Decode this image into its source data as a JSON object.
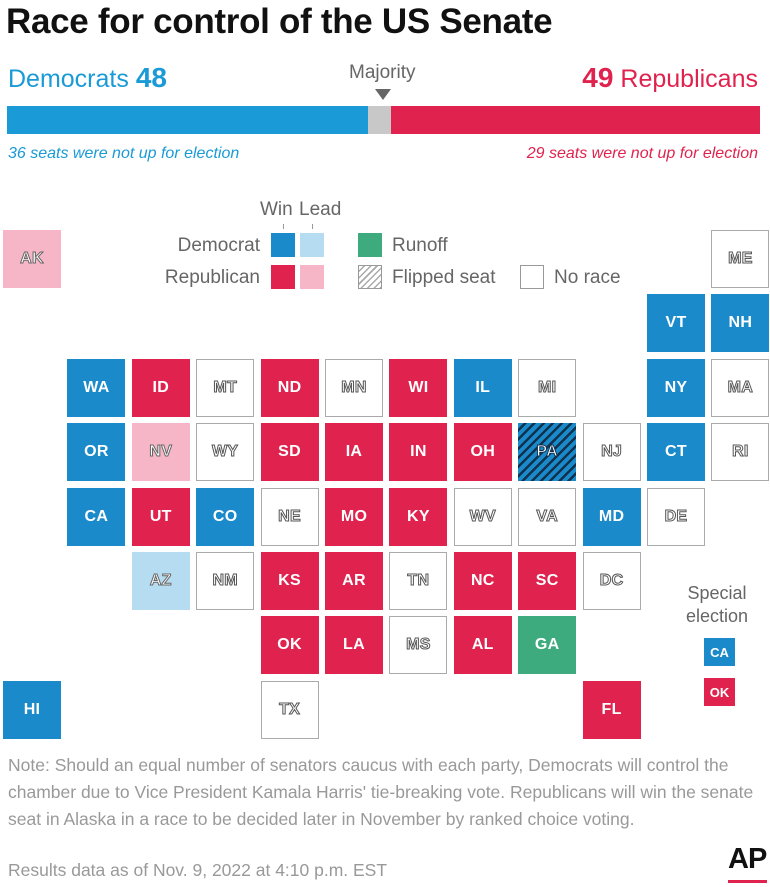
{
  "chart_data": {
    "type": "tile-map",
    "title": "Race for control of the US Senate",
    "totals": {
      "democrats": {
        "label": "Democrats",
        "seats": 48,
        "not_up": "36 seats were not up for election",
        "color": "#1a9ad6"
      },
      "republicans": {
        "label": "Republicans",
        "seats": 49,
        "not_up": "29 seats were not up for election",
        "color": "#e0234e"
      },
      "total_seats": 100,
      "majority_label": "Majority"
    },
    "legend": {
      "win": "Win",
      "lead": "Lead",
      "democrat": "Democrat",
      "republican": "Republican",
      "runoff": "Runoff",
      "flipped": "Flipped seat",
      "no_race": "No race"
    },
    "status_key": {
      "D": "Democrat win",
      "DL": "Democrat lead",
      "R": "Republican win",
      "RL": "Republican lead",
      "G": "Runoff",
      "N": "No race",
      "F": "Flipped seat (Democrat)"
    },
    "states": [
      {
        "abbr": "AK",
        "status": "RL",
        "col": 0,
        "row": 0
      },
      {
        "abbr": "ME",
        "status": "N",
        "col": 11,
        "row": 0
      },
      {
        "abbr": "VT",
        "status": "D",
        "col": 10,
        "row": 1
      },
      {
        "abbr": "NH",
        "status": "D",
        "col": 11,
        "row": 1
      },
      {
        "abbr": "WA",
        "status": "D",
        "col": 1,
        "row": 2
      },
      {
        "abbr": "ID",
        "status": "R",
        "col": 2,
        "row": 2
      },
      {
        "abbr": "MT",
        "status": "N",
        "col": 3,
        "row": 2
      },
      {
        "abbr": "ND",
        "status": "R",
        "col": 4,
        "row": 2
      },
      {
        "abbr": "MN",
        "status": "N",
        "col": 5,
        "row": 2
      },
      {
        "abbr": "WI",
        "status": "R",
        "col": 6,
        "row": 2
      },
      {
        "abbr": "IL",
        "status": "D",
        "col": 7,
        "row": 2
      },
      {
        "abbr": "MI",
        "status": "N",
        "col": 8,
        "row": 2
      },
      {
        "abbr": "NY",
        "status": "D",
        "col": 10,
        "row": 2
      },
      {
        "abbr": "MA",
        "status": "N",
        "col": 11,
        "row": 2
      },
      {
        "abbr": "OR",
        "status": "D",
        "col": 1,
        "row": 3
      },
      {
        "abbr": "NV",
        "status": "RL",
        "col": 2,
        "row": 3
      },
      {
        "abbr": "WY",
        "status": "N",
        "col": 3,
        "row": 3
      },
      {
        "abbr": "SD",
        "status": "R",
        "col": 4,
        "row": 3
      },
      {
        "abbr": "IA",
        "status": "R",
        "col": 5,
        "row": 3
      },
      {
        "abbr": "IN",
        "status": "R",
        "col": 6,
        "row": 3
      },
      {
        "abbr": "OH",
        "status": "R",
        "col": 7,
        "row": 3
      },
      {
        "abbr": "PA",
        "status": "F",
        "col": 8,
        "row": 3
      },
      {
        "abbr": "NJ",
        "status": "N",
        "col": 9,
        "row": 3
      },
      {
        "abbr": "CT",
        "status": "D",
        "col": 10,
        "row": 3
      },
      {
        "abbr": "RI",
        "status": "N",
        "col": 11,
        "row": 3
      },
      {
        "abbr": "CA",
        "status": "D",
        "col": 1,
        "row": 4
      },
      {
        "abbr": "UT",
        "status": "R",
        "col": 2,
        "row": 4
      },
      {
        "abbr": "CO",
        "status": "D",
        "col": 3,
        "row": 4
      },
      {
        "abbr": "NE",
        "status": "N",
        "col": 4,
        "row": 4
      },
      {
        "abbr": "MO",
        "status": "R",
        "col": 5,
        "row": 4
      },
      {
        "abbr": "KY",
        "status": "R",
        "col": 6,
        "row": 4
      },
      {
        "abbr": "WV",
        "status": "N",
        "col": 7,
        "row": 4
      },
      {
        "abbr": "VA",
        "status": "N",
        "col": 8,
        "row": 4
      },
      {
        "abbr": "MD",
        "status": "D",
        "col": 9,
        "row": 4
      },
      {
        "abbr": "DE",
        "status": "N",
        "col": 10,
        "row": 4
      },
      {
        "abbr": "AZ",
        "status": "DL",
        "col": 2,
        "row": 5
      },
      {
        "abbr": "NM",
        "status": "N",
        "col": 3,
        "row": 5
      },
      {
        "abbr": "KS",
        "status": "R",
        "col": 4,
        "row": 5
      },
      {
        "abbr": "AR",
        "status": "R",
        "col": 5,
        "row": 5
      },
      {
        "abbr": "TN",
        "status": "N",
        "col": 6,
        "row": 5
      },
      {
        "abbr": "NC",
        "status": "R",
        "col": 7,
        "row": 5
      },
      {
        "abbr": "SC",
        "status": "R",
        "col": 8,
        "row": 5
      },
      {
        "abbr": "DC",
        "status": "N",
        "col": 9,
        "row": 5
      },
      {
        "abbr": "OK",
        "status": "R",
        "col": 4,
        "row": 6
      },
      {
        "abbr": "LA",
        "status": "R",
        "col": 5,
        "row": 6
      },
      {
        "abbr": "MS",
        "status": "N",
        "col": 6,
        "row": 6
      },
      {
        "abbr": "AL",
        "status": "R",
        "col": 7,
        "row": 6
      },
      {
        "abbr": "GA",
        "status": "G",
        "col": 8,
        "row": 6
      },
      {
        "abbr": "HI",
        "status": "D",
        "col": 0,
        "row": 7
      },
      {
        "abbr": "TX",
        "status": "N",
        "col": 4,
        "row": 7
      },
      {
        "abbr": "FL",
        "status": "R",
        "col": 9,
        "row": 7
      }
    ],
    "special_election": {
      "label_line1": "Special",
      "label_line2": "election",
      "items": [
        {
          "abbr": "CA",
          "status": "D"
        },
        {
          "abbr": "OK",
          "status": "R"
        }
      ]
    }
  },
  "footer": {
    "note": "Note: Should an equal number of senators caucus with each party, Democrats will control the chamber due to Vice President Kamala Harris' tie-breaking vote. Republicans will win the senate seat in Alaska in a race to be decided later in November by ranked choice voting.",
    "results": "Results data as of Nov. 9, 2022 at 4:10 p.m. EST",
    "logo": "AP"
  }
}
